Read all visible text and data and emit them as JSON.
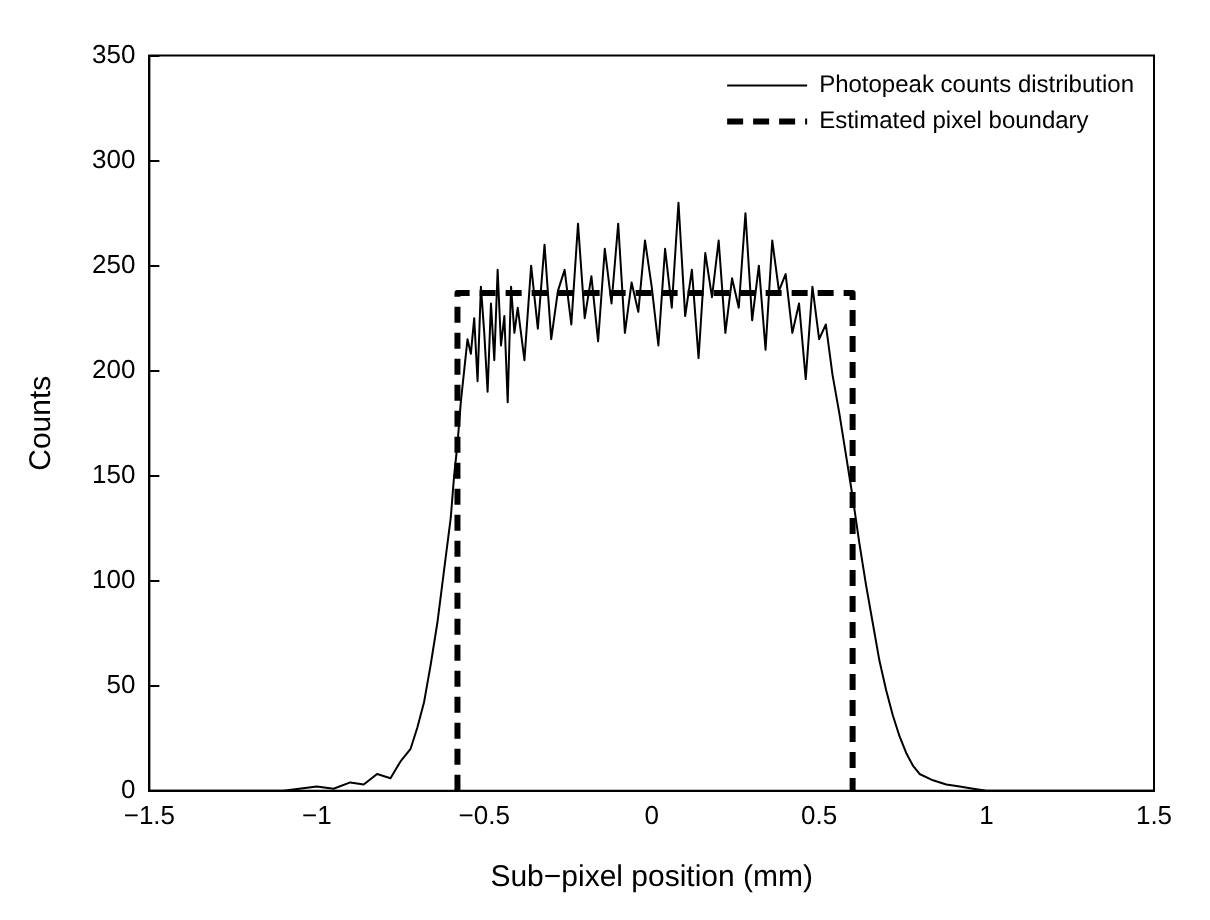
{
  "chart_data": {
    "type": "line",
    "xlabel": "Sub−pixel position (mm)",
    "ylabel": "Counts",
    "xlim": [
      -1.5,
      1.5
    ],
    "xticks": [
      {
        "value": -1.5,
        "label": "−1.5"
      },
      {
        "value": -1,
        "label": "−1"
      },
      {
        "value": -0.5,
        "label": "−0.5"
      },
      0,
      0.5,
      1,
      1.5
    ],
    "ylim": [
      0,
      350
    ],
    "yticks": [
      0,
      50,
      100,
      150,
      200,
      250,
      300,
      350
    ],
    "grid": false,
    "legend": "top right",
    "marker": "none",
    "series": [
      {
        "name": "Photopeak counts distribution",
        "color": "#000000",
        "line_style": "solid",
        "x": [
          -1.5,
          -1.3,
          -1.1,
          -1.0,
          -0.95,
          -0.9,
          -0.86,
          -0.82,
          -0.78,
          -0.75,
          -0.72,
          -0.7,
          -0.68,
          -0.66,
          -0.64,
          -0.62,
          -0.6,
          -0.59,
          -0.58,
          -0.57,
          -0.56,
          -0.55,
          -0.54,
          -0.53,
          -0.52,
          -0.51,
          -0.5,
          -0.49,
          -0.48,
          -0.47,
          -0.46,
          -0.45,
          -0.44,
          -0.43,
          -0.42,
          -0.41,
          -0.4,
          -0.38,
          -0.36,
          -0.34,
          -0.32,
          -0.3,
          -0.28,
          -0.26,
          -0.24,
          -0.22,
          -0.2,
          -0.18,
          -0.16,
          -0.14,
          -0.12,
          -0.1,
          -0.08,
          -0.06,
          -0.04,
          -0.02,
          0,
          0.02,
          0.04,
          0.06,
          0.08,
          0.1,
          0.12,
          0.14,
          0.16,
          0.18,
          0.2,
          0.22,
          0.24,
          0.26,
          0.28,
          0.3,
          0.32,
          0.34,
          0.36,
          0.38,
          0.4,
          0.42,
          0.44,
          0.46,
          0.48,
          0.5,
          0.52,
          0.54,
          0.56,
          0.58,
          0.6,
          0.62,
          0.64,
          0.66,
          0.68,
          0.7,
          0.72,
          0.74,
          0.76,
          0.78,
          0.8,
          0.84,
          0.88,
          0.92,
          0.96,
          1.0,
          1.1,
          1.3,
          1.5
        ],
        "values": [
          0,
          0,
          0,
          2,
          1,
          4,
          3,
          8,
          6,
          14,
          20,
          30,
          42,
          60,
          80,
          105,
          130,
          150,
          165,
          185,
          200,
          215,
          208,
          225,
          195,
          240,
          218,
          190,
          232,
          205,
          248,
          212,
          226,
          185,
          240,
          218,
          230,
          205,
          250,
          220,
          260,
          215,
          238,
          248,
          222,
          270,
          225,
          245,
          214,
          258,
          232,
          270,
          218,
          242,
          228,
          262,
          240,
          212,
          258,
          230,
          280,
          226,
          248,
          206,
          256,
          235,
          262,
          218,
          244,
          230,
          275,
          224,
          250,
          210,
          262,
          238,
          246,
          218,
          232,
          196,
          240,
          215,
          222,
          198,
          180,
          160,
          140,
          118,
          98,
          80,
          62,
          48,
          36,
          26,
          18,
          12,
          8,
          5,
          3,
          2,
          1,
          0,
          0,
          0,
          0
        ]
      },
      {
        "name": "Estimated pixel boundary",
        "color": "#000000",
        "line_style": "dashed",
        "x": [
          -0.58,
          -0.58,
          0.6,
          0.6
        ],
        "values": [
          0,
          237,
          237,
          0
        ]
      }
    ]
  }
}
